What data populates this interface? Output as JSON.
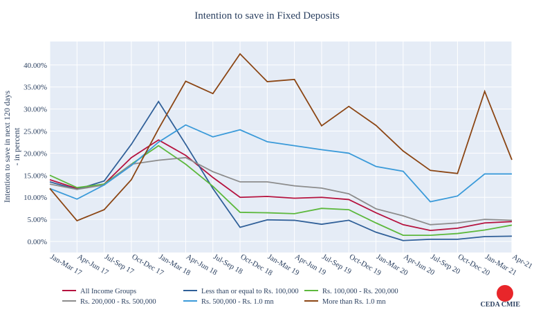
{
  "chart_data": {
    "type": "line",
    "title": "Intention to save in Fixed Deposits",
    "y_label": [
      "Intention to save in next 120 days",
      "- in percent"
    ],
    "categories": [
      "Jan-Mar 17",
      "Apr-Jun 17",
      "Jul-Sep 17",
      "Oct-Dec 17",
      "Jan-Mar 18",
      "Apr-Jun 18",
      "Jul-Sep 18",
      "Oct-Dec 18",
      "Jan-Mar 19",
      "Apr-Jun 19",
      "Jul-Sep 19",
      "Oct-Dec 19",
      "Jan-Mar 20",
      "Apr-Jun 20",
      "Jul-Sep 20",
      "Oct-Dec 20",
      "Jan-Mar 21",
      "Apr-21"
    ],
    "ylim": [
      -2.5,
      45.3
    ],
    "yticks": [
      {
        "value": 0,
        "label": "0.00%"
      },
      {
        "value": 5,
        "label": "5.00%"
      },
      {
        "value": 10,
        "label": "10.00%"
      },
      {
        "value": 15,
        "label": "15.00%"
      },
      {
        "value": 20,
        "label": "20.00%"
      },
      {
        "value": 25,
        "label": "25.00%"
      },
      {
        "value": 30,
        "label": "30.00%"
      },
      {
        "value": 35,
        "label": "35.00%"
      },
      {
        "value": 40,
        "label": "40.00%"
      }
    ],
    "grid": true,
    "series": [
      {
        "name": "All Income Groups",
        "color": "#b5123e",
        "values": [
          14,
          12,
          13,
          19,
          23,
          19.5,
          14.5,
          10,
          10.2,
          9.8,
          10,
          9.5,
          6.5,
          3.8,
          2.5,
          3,
          4.2,
          4.5
        ]
      },
      {
        "name": "Less than or equal to Rs. 100,000",
        "color": "#2f5f98",
        "values": [
          13.5,
          11.8,
          13.7,
          22,
          31.7,
          22,
          12,
          3.2,
          4.9,
          4.8,
          3.9,
          4.8,
          2.1,
          0.2,
          0.5,
          0.5,
          1.1,
          1.2
        ]
      },
      {
        "name": "Rs. 100,000 - Rs. 200,000",
        "color": "#5cb83c",
        "values": [
          15,
          12.2,
          13,
          17.5,
          21.7,
          17.5,
          12.5,
          6.6,
          6.5,
          6.3,
          7.5,
          7.2,
          4.2,
          1.4,
          1.4,
          1.8,
          2.6,
          3.7
        ]
      },
      {
        "name": "Rs. 200,000 - Rs. 500,000",
        "color": "#8c8c8c",
        "values": [
          13,
          11.8,
          12.8,
          17.5,
          18.4,
          19,
          15.8,
          13.5,
          13.5,
          12.6,
          12.1,
          10.8,
          7.4,
          5.8,
          3.8,
          4.2,
          5,
          4.8
        ]
      },
      {
        "name": "Rs. 500,000 - Rs. 1.0 mn",
        "color": "#3a9ad9",
        "values": [
          12,
          9.6,
          12.8,
          17.2,
          22.5,
          26.4,
          23.7,
          25.3,
          22.6,
          21.7,
          20.8,
          20,
          17,
          15.9,
          9,
          10.3,
          15.3,
          15.3
        ]
      },
      {
        "name": "More than Rs. 1.0 mn",
        "color": "#8b4513",
        "values": [
          12,
          4.7,
          7.2,
          14,
          25.5,
          36.3,
          33.5,
          42.5,
          36.2,
          36.7,
          26.2,
          30.6,
          26.3,
          20.5,
          16.1,
          15.4,
          34,
          18.5
        ]
      }
    ]
  },
  "logo": "CEDA CMIE"
}
